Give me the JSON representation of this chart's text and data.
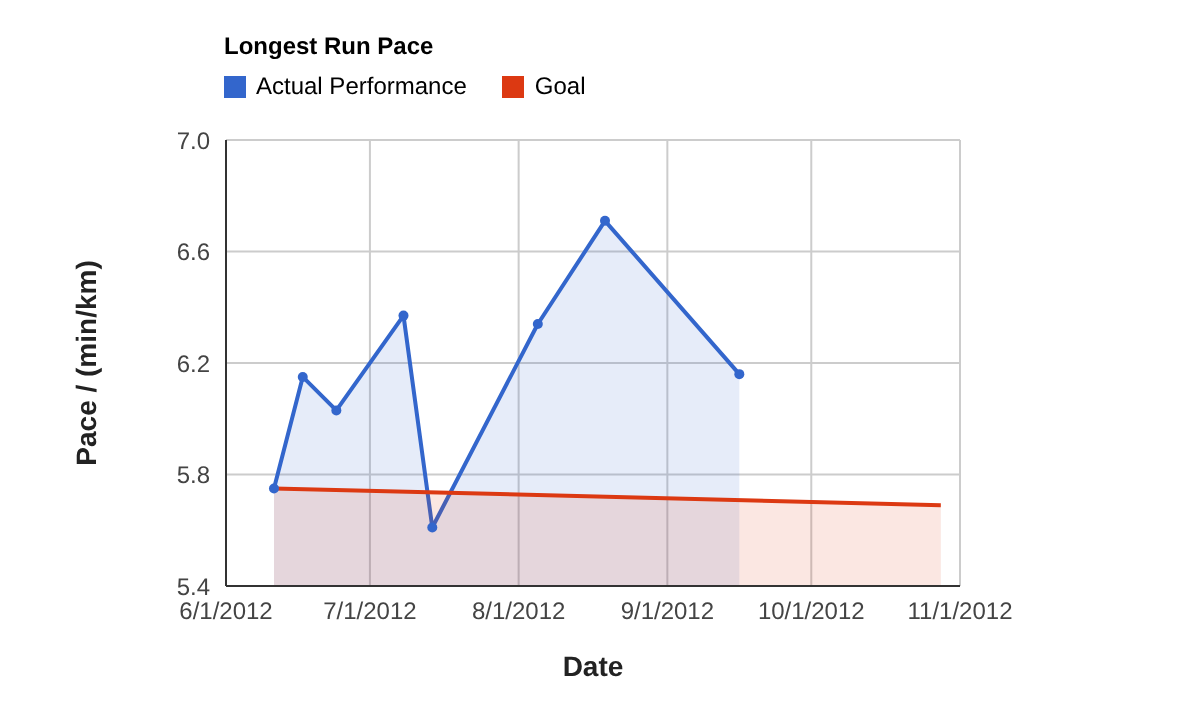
{
  "chart_data": {
    "type": "area",
    "title": "Longest Run Pace",
    "xlabel": "Date",
    "ylabel": "Pace / (min/km)",
    "series": [
      {
        "name": "Actual Performance",
        "color": "#3366cc",
        "marker": "circle",
        "x": [
          "2012-06-11",
          "2012-06-17",
          "2012-06-24",
          "2012-07-08",
          "2012-07-14",
          "2012-08-05",
          "2012-08-19",
          "2012-09-16"
        ],
        "values": [
          5.75,
          6.15,
          6.03,
          6.37,
          5.61,
          6.34,
          6.71,
          6.16
        ]
      },
      {
        "name": "Goal",
        "color": "#dc3912",
        "marker": "none",
        "x": [
          "2012-06-11",
          "2012-10-28"
        ],
        "values": [
          5.75,
          5.69
        ]
      }
    ],
    "xlim": [
      "2012-06-01",
      "2012-11-01"
    ],
    "xticks": [
      {
        "value": "2012-06-01",
        "label": "6/1/2012"
      },
      {
        "value": "2012-07-01",
        "label": "7/1/2012"
      },
      {
        "value": "2012-08-01",
        "label": "8/1/2012"
      },
      {
        "value": "2012-09-01",
        "label": "9/1/2012"
      },
      {
        "value": "2012-10-01",
        "label": "10/1/2012"
      },
      {
        "value": "2012-11-01",
        "label": "11/1/2012"
      }
    ],
    "ylim": [
      5.4,
      7.0
    ],
    "yticks": [
      {
        "value": 5.4,
        "label": "5.4"
      },
      {
        "value": 5.8,
        "label": "5.8"
      },
      {
        "value": 6.2,
        "label": "6.2"
      },
      {
        "value": 6.6,
        "label": "6.6"
      },
      {
        "value": 7.0,
        "label": "7.0"
      }
    ],
    "grid": true,
    "legend": "top left"
  }
}
